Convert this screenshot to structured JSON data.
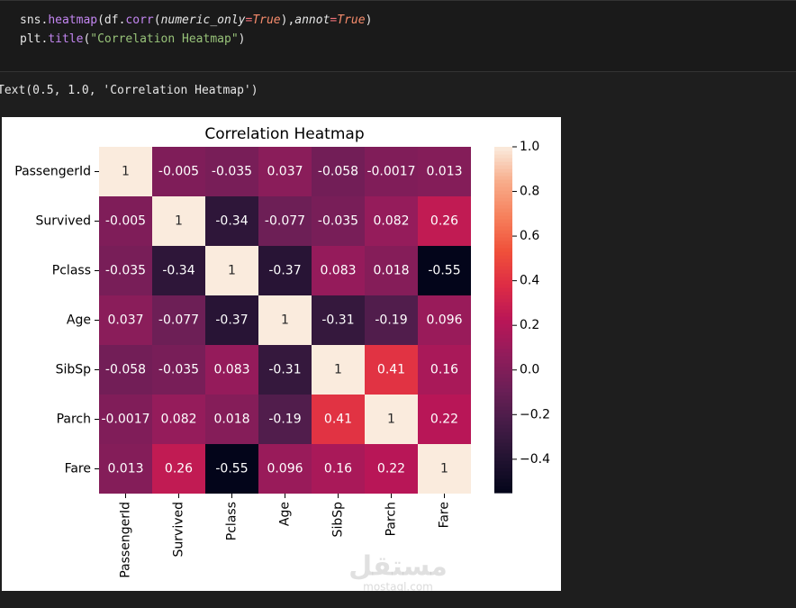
{
  "code": [
    [
      {
        "text": "sns.",
        "color": "#e6e6e6"
      },
      {
        "text": "heatmap",
        "color": "#c386f1"
      },
      {
        "text": "(df.",
        "color": "#e6e6e6"
      },
      {
        "text": "corr",
        "color": "#c386f1"
      },
      {
        "text": "(",
        "color": "#e6e6e6"
      },
      {
        "text": "numeric_only",
        "color": "#e6e6e6",
        "italic": true
      },
      {
        "text": "=",
        "color": "#f07178"
      },
      {
        "text": "True",
        "color": "#f78c6c",
        "italic": true
      },
      {
        "text": "),",
        "color": "#e6e6e6"
      },
      {
        "text": "annot",
        "color": "#e6e6e6",
        "italic": true
      },
      {
        "text": "=",
        "color": "#f07178"
      },
      {
        "text": "True",
        "color": "#f78c6c",
        "italic": true
      },
      {
        "text": ")",
        "color": "#e6e6e6"
      }
    ],
    [
      {
        "text": "plt.",
        "color": "#e6e6e6"
      },
      {
        "text": "title",
        "color": "#c386f1"
      },
      {
        "text": "(",
        "color": "#e6e6e6"
      },
      {
        "text": "\"Correlation Heatmap\"",
        "color": "#98c379"
      },
      {
        "text": ")",
        "color": "#e6e6e6"
      }
    ]
  ],
  "output": "Text(0.5, 1.0, 'Correlation Heatmap')",
  "chart_data": {
    "type": "heatmap",
    "title": "Correlation Heatmap",
    "rows": [
      "PassengerId",
      "Survived",
      "Pclass",
      "Age",
      "SibSp",
      "Parch",
      "Fare"
    ],
    "columns": [
      "PassengerId",
      "Survived",
      "Pclass",
      "Age",
      "SibSp",
      "Parch",
      "Fare"
    ],
    "values": [
      [
        1,
        -0.005,
        -0.035,
        0.037,
        -0.058,
        -0.0017,
        0.013
      ],
      [
        -0.005,
        1,
        -0.34,
        -0.077,
        -0.035,
        0.082,
        0.26
      ],
      [
        -0.035,
        -0.34,
        1,
        -0.37,
        0.083,
        0.018,
        -0.55
      ],
      [
        0.037,
        -0.077,
        -0.37,
        1,
        -0.31,
        -0.19,
        0.096
      ],
      [
        -0.058,
        -0.035,
        0.083,
        -0.31,
        1,
        0.41,
        0.16
      ],
      [
        -0.0017,
        0.082,
        0.018,
        -0.19,
        0.41,
        1,
        0.22
      ],
      [
        0.013,
        0.26,
        -0.55,
        0.096,
        0.16,
        0.22,
        1
      ]
    ],
    "clim": [
      -0.55,
      1
    ],
    "cticks": [
      {
        "value": 1,
        "label": "1.0"
      },
      0.8,
      0.6,
      0.4,
      0.2,
      {
        "value": 0,
        "label": "0.0"
      },
      {
        "value": -0.2,
        "label": "−0.2"
      },
      {
        "value": -0.4,
        "label": "−0.4"
      }
    ],
    "colormap": [
      "#03051a",
      "#221331",
      "#451c47",
      "#6b1f56",
      "#921c5b",
      "#b91657",
      "#dd2c45",
      "#f0513a",
      "#f6805c",
      "#f8ac8a",
      "#faebdd"
    ]
  },
  "watermark": {
    "arabic": "مستقل",
    "latin": "mostaql.com"
  }
}
